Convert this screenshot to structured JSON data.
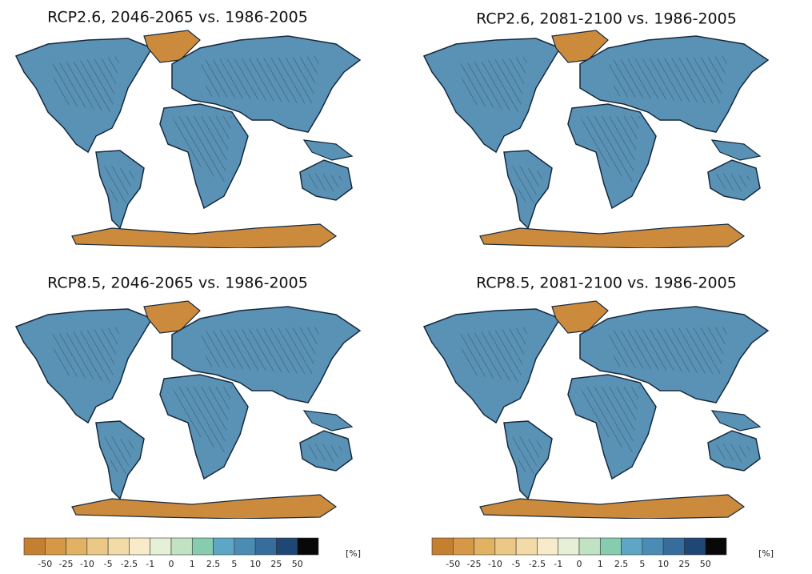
{
  "panels": [
    {
      "title": "RCP2.6, 2046-2065 vs. 1986-2005"
    },
    {
      "title": "RCP2.6, 2081-2100  vs. 1986-2005"
    },
    {
      "title": "RCP8.5, 2046-2065 vs. 1986-2005"
    },
    {
      "title": "RCP8.5, 2081-2100  vs. 1986-2005"
    }
  ],
  "colorbar": {
    "ticks": [
      "-50",
      "-25",
      "-10",
      "-5",
      "-2.5",
      "-1",
      "0",
      "1",
      "2.5",
      "5",
      "10",
      "25",
      "50"
    ],
    "colors": [
      "#c57f30",
      "#d69846",
      "#e2b263",
      "#ecc886",
      "#f3dba8",
      "#f8ebc9",
      "#e6f0d6",
      "#c2e2c4",
      "#88ccb0",
      "#5ea6c5",
      "#4b8cb5",
      "#376d9c",
      "#1f4775",
      "#080808"
    ],
    "unit": "[%]"
  }
}
